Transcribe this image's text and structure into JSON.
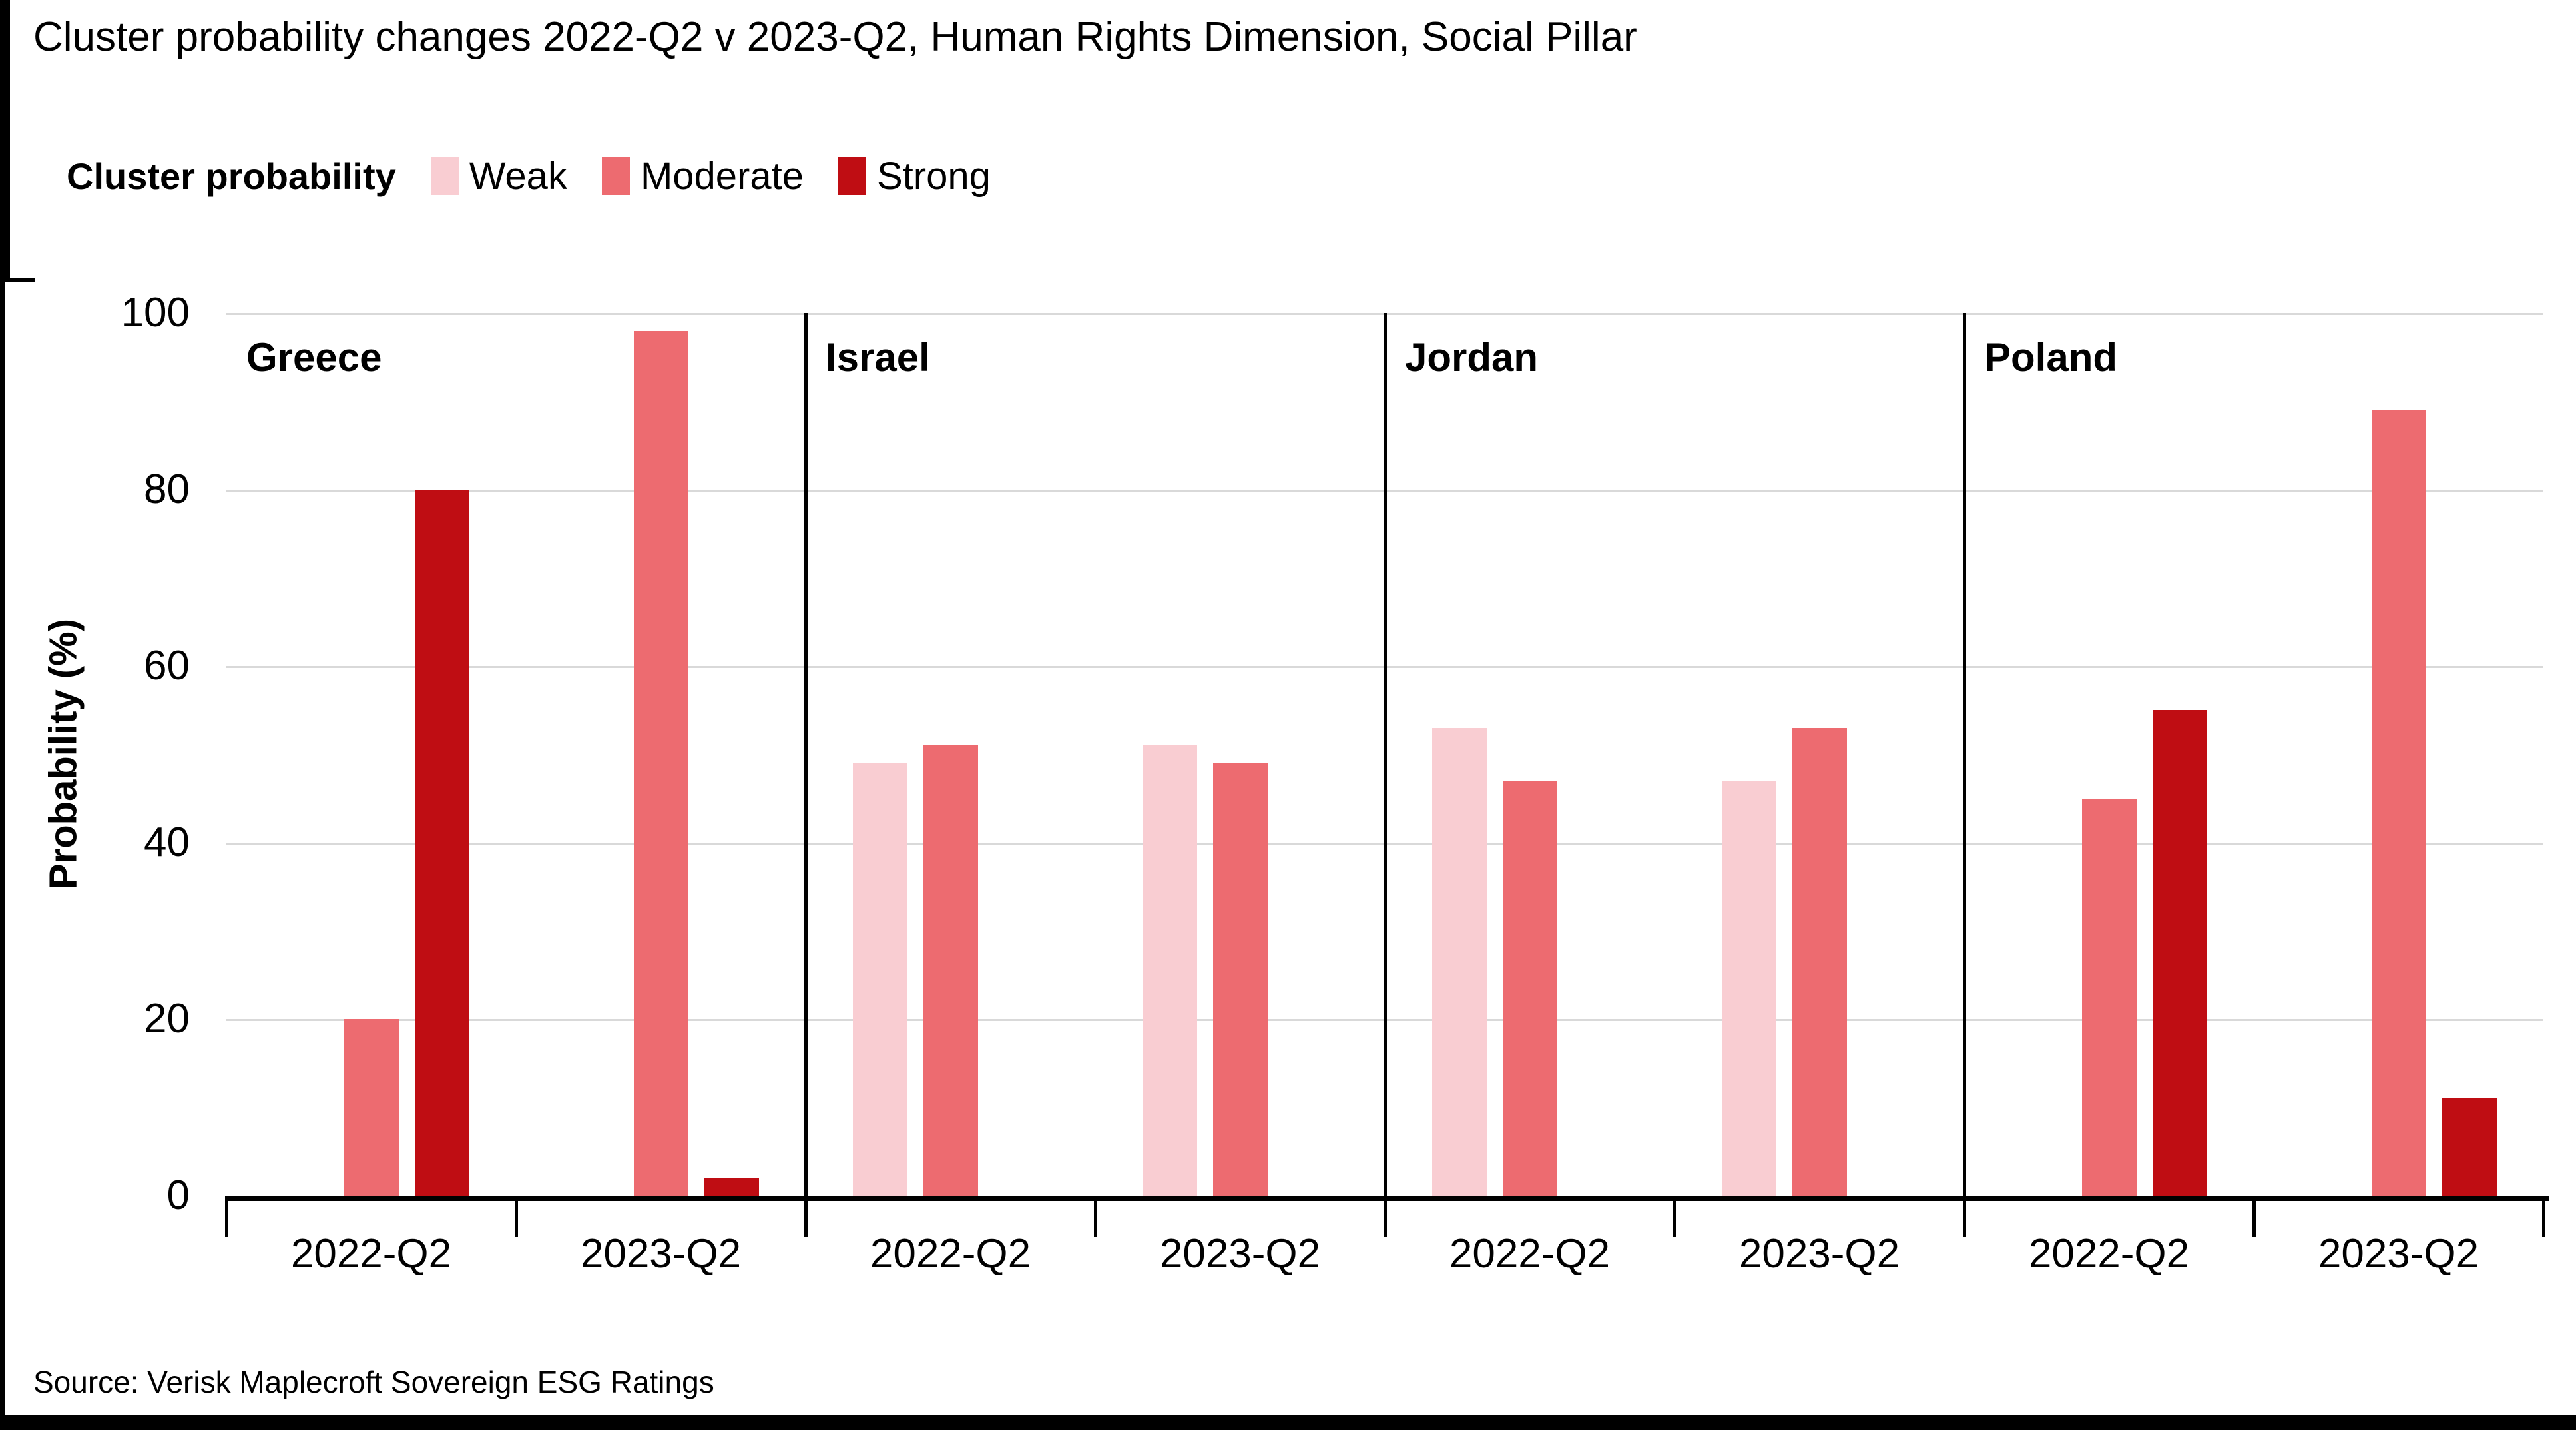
{
  "title": "Cluster probability changes 2022-Q2 v 2023-Q2, Human Rights Dimension, Social Pillar",
  "source": "Source: Verisk Maplecroft Sovereign ESG Ratings",
  "legend": {
    "title": "Cluster probability",
    "items": [
      {
        "label": "Weak",
        "color": "#f9cdd2"
      },
      {
        "label": "Moderate",
        "color": "#ed6b70"
      },
      {
        "label": "Strong",
        "color": "#bf0d13"
      }
    ]
  },
  "y_axis": {
    "label": "Probability (%)",
    "ticks": [
      "100",
      "80",
      "60",
      "40",
      "20",
      "0"
    ]
  },
  "colors": {
    "weak": "#f9cdd2",
    "moderate": "#ed6b70",
    "strong": "#bf0d13",
    "gridline": "#d9d9d9",
    "axis": "#000000",
    "text": "#000000"
  },
  "chart_data": {
    "type": "bar",
    "title": "Cluster probability changes 2022-Q2 v 2023-Q2, Human Rights Dimension, Social Pillar",
    "xlabel": "",
    "ylabel": "Probability (%)",
    "ylim": [
      0,
      100
    ],
    "grid": true,
    "legend_position": "top",
    "series": [
      "Weak",
      "Moderate",
      "Strong"
    ],
    "series_colors": {
      "Weak": "#f9cdd2",
      "Moderate": "#ed6b70",
      "Strong": "#bf0d13"
    },
    "x_groups": [
      "2022-Q2",
      "2023-Q2"
    ],
    "panels": [
      {
        "country": "Greece",
        "groups": [
          {
            "label": "2022-Q2",
            "values": {
              "Weak": 0,
              "Moderate": 20,
              "Strong": 80
            }
          },
          {
            "label": "2023-Q2",
            "values": {
              "Weak": 0,
              "Moderate": 98,
              "Strong": 2
            }
          }
        ]
      },
      {
        "country": "Israel",
        "groups": [
          {
            "label": "2022-Q2",
            "values": {
              "Weak": 49,
              "Moderate": 51,
              "Strong": 0
            }
          },
          {
            "label": "2023-Q2",
            "values": {
              "Weak": 51,
              "Moderate": 49,
              "Strong": 0
            }
          }
        ]
      },
      {
        "country": "Jordan",
        "groups": [
          {
            "label": "2022-Q2",
            "values": {
              "Weak": 53,
              "Moderate": 47,
              "Strong": 0
            }
          },
          {
            "label": "2023-Q2",
            "values": {
              "Weak": 47,
              "Moderate": 53,
              "Strong": 0
            }
          }
        ]
      },
      {
        "country": "Poland",
        "groups": [
          {
            "label": "2022-Q2",
            "values": {
              "Weak": 0,
              "Moderate": 45,
              "Strong": 55
            }
          },
          {
            "label": "2023-Q2",
            "values": {
              "Weak": 0,
              "Moderate": 89,
              "Strong": 11
            }
          }
        ]
      }
    ]
  }
}
